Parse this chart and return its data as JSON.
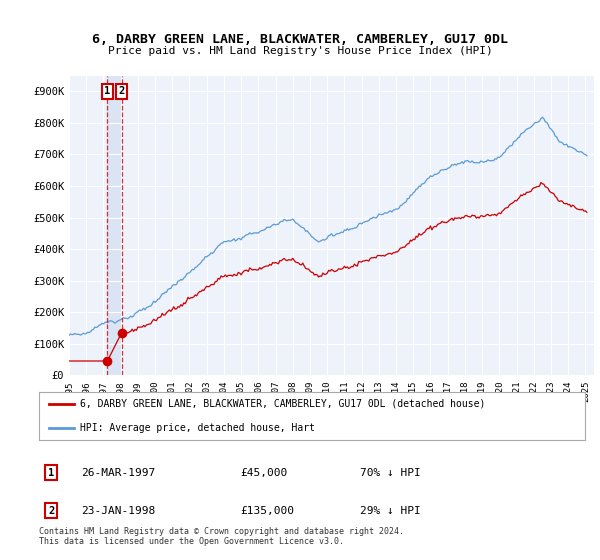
{
  "title": "6, DARBY GREEN LANE, BLACKWATER, CAMBERLEY, GU17 0DL",
  "subtitle": "Price paid vs. HM Land Registry's House Price Index (HPI)",
  "ylim": [
    0,
    950000
  ],
  "yticks": [
    0,
    100000,
    200000,
    300000,
    400000,
    500000,
    600000,
    700000,
    800000,
    900000
  ],
  "ytick_labels": [
    "£0",
    "£100K",
    "£200K",
    "£300K",
    "£400K",
    "£500K",
    "£600K",
    "£700K",
    "£800K",
    "£900K"
  ],
  "hpi_color": "#5b9bd5",
  "price_color": "#cc0000",
  "sale1_date": 1997.23,
  "sale1_price": 45000,
  "sale2_date": 1998.06,
  "sale2_price": 135000,
  "legend_line1": "6, DARBY GREEN LANE, BLACKWATER, CAMBERLEY, GU17 0DL (detached house)",
  "legend_line2": "HPI: Average price, detached house, Hart",
  "table_row1": [
    "1",
    "26-MAR-1997",
    "£45,000",
    "70% ↓ HPI"
  ],
  "table_row2": [
    "2",
    "23-JAN-1998",
    "£135,000",
    "29% ↓ HPI"
  ],
  "footer": "Contains HM Land Registry data © Crown copyright and database right 2024.\nThis data is licensed under the Open Government Licence v3.0.",
  "background_color": "#eef2fb",
  "xlim_start": 1995.0,
  "xlim_end": 2025.5
}
